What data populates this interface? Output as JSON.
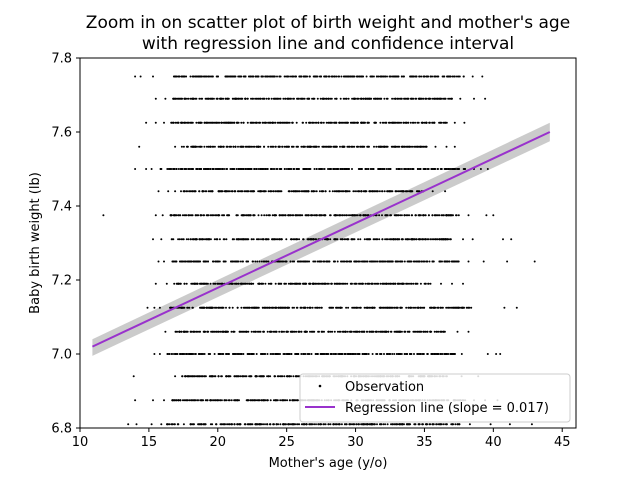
{
  "chart_data": {
    "type": "scatter",
    "title_lines": [
      "Zoom in on scatter plot of birth weight and mother's age",
      "with regression line and confidence interval"
    ],
    "xlabel": "Mother's age (y/o)",
    "ylabel": "Baby birth weight (lb)",
    "xlim": [
      10,
      46
    ],
    "ylim": [
      6.8,
      7.8
    ],
    "x_ticks": [
      10,
      15,
      20,
      25,
      30,
      35,
      40,
      45
    ],
    "y_ticks": [
      6.8,
      7.0,
      7.2,
      7.4,
      7.6,
      7.8
    ],
    "x_tick_labels": [
      "10",
      "15",
      "20",
      "25",
      "30",
      "35",
      "40",
      "45"
    ],
    "y_tick_labels": [
      "6.8",
      "7.0",
      "7.2",
      "7.4",
      "7.6",
      "7.8"
    ],
    "grid": false,
    "legend_position": "lower-right",
    "series": [
      {
        "name": "Observation",
        "kind": "scatter",
        "color": "#000000",
        "weight_levels": [
          6.81,
          6.875,
          6.94,
          7.0,
          7.06,
          7.125,
          7.19,
          7.25,
          7.31,
          7.375,
          7.44,
          7.5,
          7.56,
          7.625,
          7.69,
          7.75
        ],
        "level_ranges": [
          {
            "y": 6.81,
            "sparse_x": [
              13.5,
              14.1,
              15.2,
              15.9,
              38.3,
              39.8,
              41.2,
              42.8
            ],
            "dense_from": 16.2,
            "dense_to": 37.6
          },
          {
            "y": 6.875,
            "sparse_x": [
              14.0,
              15.3,
              16.1,
              38.6,
              39.4,
              40.3
            ],
            "dense_from": 16.6,
            "dense_to": 38.0
          },
          {
            "y": 6.94,
            "sparse_x": [
              13.9,
              16.9,
              37.7,
              38.9
            ],
            "dense_from": 17.4,
            "dense_to": 37.0
          },
          {
            "y": 7.0,
            "sparse_x": [
              15.4,
              15.8,
              39.6,
              40.2,
              40.5
            ],
            "dense_from": 16.3,
            "dense_to": 37.8
          },
          {
            "y": 7.06,
            "sparse_x": [
              16.2,
              37.4,
              38.2
            ],
            "dense_from": 16.9,
            "dense_to": 36.5
          },
          {
            "y": 7.125,
            "sparse_x": [
              14.9,
              15.4,
              15.8,
              40.8,
              41.7
            ],
            "dense_from": 16.5,
            "dense_to": 38.5
          },
          {
            "y": 7.19,
            "sparse_x": [
              15.5,
              16.3,
              36.2,
              37.0,
              37.8
            ],
            "dense_from": 16.8,
            "dense_to": 35.5
          },
          {
            "y": 7.25,
            "sparse_x": [
              15.7,
              16.1,
              38.2,
              39.3,
              41.0,
              43.0
            ],
            "dense_from": 16.7,
            "dense_to": 37.5
          },
          {
            "y": 7.31,
            "sparse_x": [
              15.3,
              15.9,
              37.8,
              38.5,
              40.7,
              41.3
            ],
            "dense_from": 16.6,
            "dense_to": 37.0
          },
          {
            "y": 7.375,
            "sparse_x": [
              11.7,
              15.5,
              16.0,
              38.2,
              39.5,
              40.0
            ],
            "dense_from": 16.5,
            "dense_to": 37.5
          },
          {
            "y": 7.44,
            "sparse_x": [
              15.7,
              16.4,
              16.9,
              35.6,
              36.5
            ],
            "dense_from": 17.3,
            "dense_to": 35.0
          },
          {
            "y": 7.5,
            "sparse_x": [
              14.0,
              14.8,
              15.2,
              38.6,
              39.1,
              39.6
            ],
            "dense_from": 15.8,
            "dense_to": 38.0
          },
          {
            "y": 7.56,
            "sparse_x": [
              14.3,
              16.9,
              35.8,
              36.6,
              37.2
            ],
            "dense_from": 17.3,
            "dense_to": 35.2
          },
          {
            "y": 7.625,
            "sparse_x": [
              14.8,
              15.5,
              16.1,
              37.2,
              37.9
            ],
            "dense_from": 16.6,
            "dense_to": 36.7
          },
          {
            "y": 7.69,
            "sparse_x": [
              15.5,
              16.2,
              37.6,
              38.6,
              39.4
            ],
            "dense_from": 16.7,
            "dense_to": 37.0
          },
          {
            "y": 7.75,
            "sparse_x": [
              14.0,
              14.4,
              15.3,
              38.5,
              39.2
            ],
            "dense_from": 16.8,
            "dense_to": 37.9
          }
        ]
      },
      {
        "name": "Regression line (slope = 0.017)",
        "kind": "line",
        "color": "#9932cc",
        "x": [
          10.9,
          44.1
        ],
        "y": [
          7.02,
          7.6
        ],
        "ci_upper": [
          7.04,
          7.625
        ],
        "ci_lower": [
          6.995,
          7.575
        ],
        "ci_color": "#a0a0a0"
      }
    ]
  }
}
